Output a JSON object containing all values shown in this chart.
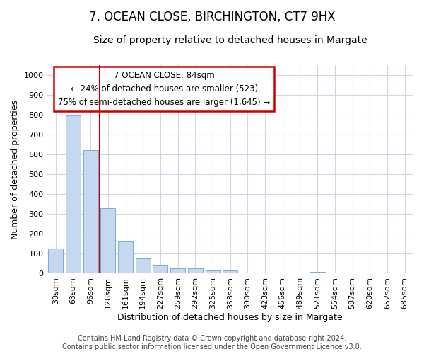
{
  "title": "7, OCEAN CLOSE, BIRCHINGTON, CT7 9HX",
  "subtitle": "Size of property relative to detached houses in Margate",
  "xlabel": "Distribution of detached houses by size in Margate",
  "ylabel": "Number of detached properties",
  "categories": [
    "30sqm",
    "63sqm",
    "96sqm",
    "128sqm",
    "161sqm",
    "194sqm",
    "227sqm",
    "259sqm",
    "292sqm",
    "325sqm",
    "358sqm",
    "390sqm",
    "423sqm",
    "456sqm",
    "489sqm",
    "521sqm",
    "554sqm",
    "587sqm",
    "620sqm",
    "652sqm",
    "685sqm"
  ],
  "values": [
    125,
    795,
    620,
    328,
    162,
    78,
    40,
    28,
    25,
    15,
    15,
    5,
    0,
    0,
    0,
    10,
    0,
    0,
    0,
    0,
    0
  ],
  "bar_color": "#c5d8f0",
  "bar_edge_color": "#7aadd4",
  "annotation_text_line1": "7 OCEAN CLOSE: 84sqm",
  "annotation_text_line2": "← 24% of detached houses are smaller (523)",
  "annotation_text_line3": "75% of semi-detached houses are larger (1,645) →",
  "annotation_box_facecolor": "#ffffff",
  "annotation_border_color": "#cc0000",
  "red_line_x": 2.5,
  "ylim": [
    0,
    1050
  ],
  "yticks": [
    0,
    100,
    200,
    300,
    400,
    500,
    600,
    700,
    800,
    900,
    1000
  ],
  "footer_line1": "Contains HM Land Registry data © Crown copyright and database right 2024.",
  "footer_line2": "Contains public sector information licensed under the Open Government Licence v3.0.",
  "background_color": "#ffffff",
  "plot_bg_color": "#ffffff",
  "grid_color": "#d0d8e8",
  "title_fontsize": 12,
  "subtitle_fontsize": 10,
  "axis_label_fontsize": 9,
  "tick_fontsize": 8,
  "annotation_fontsize": 8.5,
  "footer_fontsize": 7
}
